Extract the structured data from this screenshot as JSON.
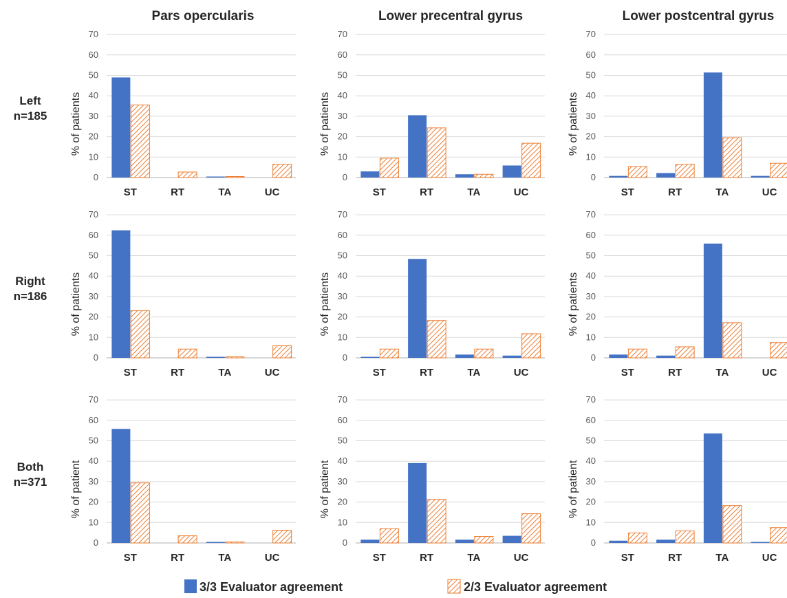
{
  "figure": {
    "column_titles": [
      "Pars opercularis",
      "Lower precentral gyrus",
      "Lower postcentral gyrus"
    ],
    "row_labels": [
      {
        "name": "Left",
        "n": "n=185"
      },
      {
        "name": "Right",
        "n": "n=186"
      },
      {
        "name": "Both",
        "n": "n=371"
      }
    ],
    "legend": [
      {
        "label": "3/3 Evaluator agreement",
        "color": "#4472C4",
        "pattern": "solid"
      },
      {
        "label": "2/3 Evaluator agreement",
        "color": "#ED7D31",
        "pattern": "hatched"
      }
    ],
    "colors": {
      "series1": "#4472C4",
      "series2": "#ED7D31",
      "grid": "#D9D9D9",
      "axis": "#BFBFBF"
    }
  },
  "chart_data": [
    {
      "type": "bar",
      "row": "Left",
      "column": "Pars opercularis",
      "ylabel": "% of patients",
      "ylim": [
        0,
        70
      ],
      "yticks": [
        0,
        10,
        20,
        30,
        40,
        50,
        60,
        70
      ],
      "categories": [
        "ST",
        "RT",
        "TA",
        "UC"
      ],
      "series": [
        {
          "name": "3/3 Evaluator agreement",
          "values": [
            49,
            0,
            0.5,
            0
          ]
        },
        {
          "name": "2/3 Evaluator agreement",
          "values": [
            35.5,
            2.7,
            0.5,
            6.5
          ]
        }
      ]
    },
    {
      "type": "bar",
      "row": "Left",
      "column": "Lower precentral gyrus",
      "ylabel": "% of patients",
      "ylim": [
        0,
        70
      ],
      "yticks": [
        0,
        10,
        20,
        30,
        40,
        50,
        60,
        70
      ],
      "categories": [
        "ST",
        "RT",
        "TA",
        "UC"
      ],
      "series": [
        {
          "name": "3/3 Evaluator agreement",
          "values": [
            3,
            30.5,
            1.6,
            5.9
          ]
        },
        {
          "name": "2/3 Evaluator agreement",
          "values": [
            9.5,
            24.3,
            1.6,
            16.8
          ]
        }
      ]
    },
    {
      "type": "bar",
      "row": "Left",
      "column": "Lower postcentral gyrus",
      "ylabel": "% of patients",
      "ylim": [
        0,
        70
      ],
      "yticks": [
        0,
        10,
        20,
        30,
        40,
        50,
        60,
        70
      ],
      "categories": [
        "ST",
        "RT",
        "TA",
        "UC"
      ],
      "series": [
        {
          "name": "3/3 Evaluator agreement",
          "values": [
            0.8,
            2.2,
            51.4,
            0.8
          ]
        },
        {
          "name": "2/3 Evaluator agreement",
          "values": [
            5.4,
            6.5,
            19.5,
            7
          ]
        }
      ]
    },
    {
      "type": "bar",
      "row": "Right",
      "column": "Pars opercularis",
      "ylabel": "% of patients",
      "ylim": [
        0,
        70
      ],
      "yticks": [
        0,
        10,
        20,
        30,
        40,
        50,
        60,
        70
      ],
      "categories": [
        "ST",
        "RT",
        "TA",
        "UC"
      ],
      "series": [
        {
          "name": "3/3 Evaluator agreement",
          "values": [
            62.4,
            0,
            0.5,
            0
          ]
        },
        {
          "name": "2/3 Evaluator agreement",
          "values": [
            23.1,
            4.3,
            0.5,
            5.9
          ]
        }
      ]
    },
    {
      "type": "bar",
      "row": "Right",
      "column": "Lower precentral gyrus",
      "ylabel": "% of patients",
      "ylim": [
        0,
        70
      ],
      "yticks": [
        0,
        10,
        20,
        30,
        40,
        50,
        60,
        70
      ],
      "categories": [
        "ST",
        "RT",
        "TA",
        "UC"
      ],
      "series": [
        {
          "name": "3/3 Evaluator agreement",
          "values": [
            0.5,
            48.4,
            1.6,
            1.1
          ]
        },
        {
          "name": "2/3 Evaluator agreement",
          "values": [
            4.3,
            18.3,
            4.3,
            11.8
          ]
        }
      ]
    },
    {
      "type": "bar",
      "row": "Right",
      "column": "Lower postcentral gyrus",
      "ylabel": "% of patients",
      "ylim": [
        0,
        70
      ],
      "yticks": [
        0,
        10,
        20,
        30,
        40,
        50,
        60,
        70
      ],
      "categories": [
        "ST",
        "RT",
        "TA",
        "UC"
      ],
      "series": [
        {
          "name": "3/3 Evaluator agreement",
          "values": [
            1.6,
            1.1,
            55.9,
            0
          ]
        },
        {
          "name": "2/3 Evaluator agreement",
          "values": [
            4.3,
            5.4,
            17.2,
            7.5
          ]
        }
      ]
    },
    {
      "type": "bar",
      "row": "Both",
      "column": "Pars opercularis",
      "ylabel": "% of patient",
      "ylim": [
        0,
        70
      ],
      "yticks": [
        0,
        10,
        20,
        30,
        40,
        50,
        60,
        70
      ],
      "categories": [
        "ST",
        "RT",
        "TA",
        "UC"
      ],
      "series": [
        {
          "name": "3/3 Evaluator agreement",
          "values": [
            55.8,
            0,
            0.5,
            0
          ]
        },
        {
          "name": "2/3 Evaluator agreement",
          "values": [
            29.4,
            3.5,
            0.5,
            6.2
          ]
        }
      ]
    },
    {
      "type": "bar",
      "row": "Both",
      "column": "Lower precentral gyrus",
      "ylabel": "% of patient",
      "ylim": [
        0,
        70
      ],
      "yticks": [
        0,
        10,
        20,
        30,
        40,
        50,
        60,
        70
      ],
      "categories": [
        "ST",
        "RT",
        "TA",
        "UC"
      ],
      "series": [
        {
          "name": "3/3 Evaluator agreement",
          "values": [
            1.6,
            39.1,
            1.6,
            3.5
          ]
        },
        {
          "name": "2/3 Evaluator agreement",
          "values": [
            7,
            21.3,
            3.2,
            14.3
          ]
        }
      ]
    },
    {
      "type": "bar",
      "row": "Both",
      "column": "Lower postcentral gyrus",
      "ylabel": "% of patient",
      "ylim": [
        0,
        70
      ],
      "yticks": [
        0,
        10,
        20,
        30,
        40,
        50,
        60,
        70
      ],
      "categories": [
        "ST",
        "RT",
        "TA",
        "UC"
      ],
      "series": [
        {
          "name": "3/3 Evaluator agreement",
          "values": [
            1.1,
            1.6,
            53.6,
            0.5
          ]
        },
        {
          "name": "2/3 Evaluator agreement",
          "values": [
            4.9,
            5.9,
            18.3,
            7.5
          ]
        }
      ]
    }
  ]
}
